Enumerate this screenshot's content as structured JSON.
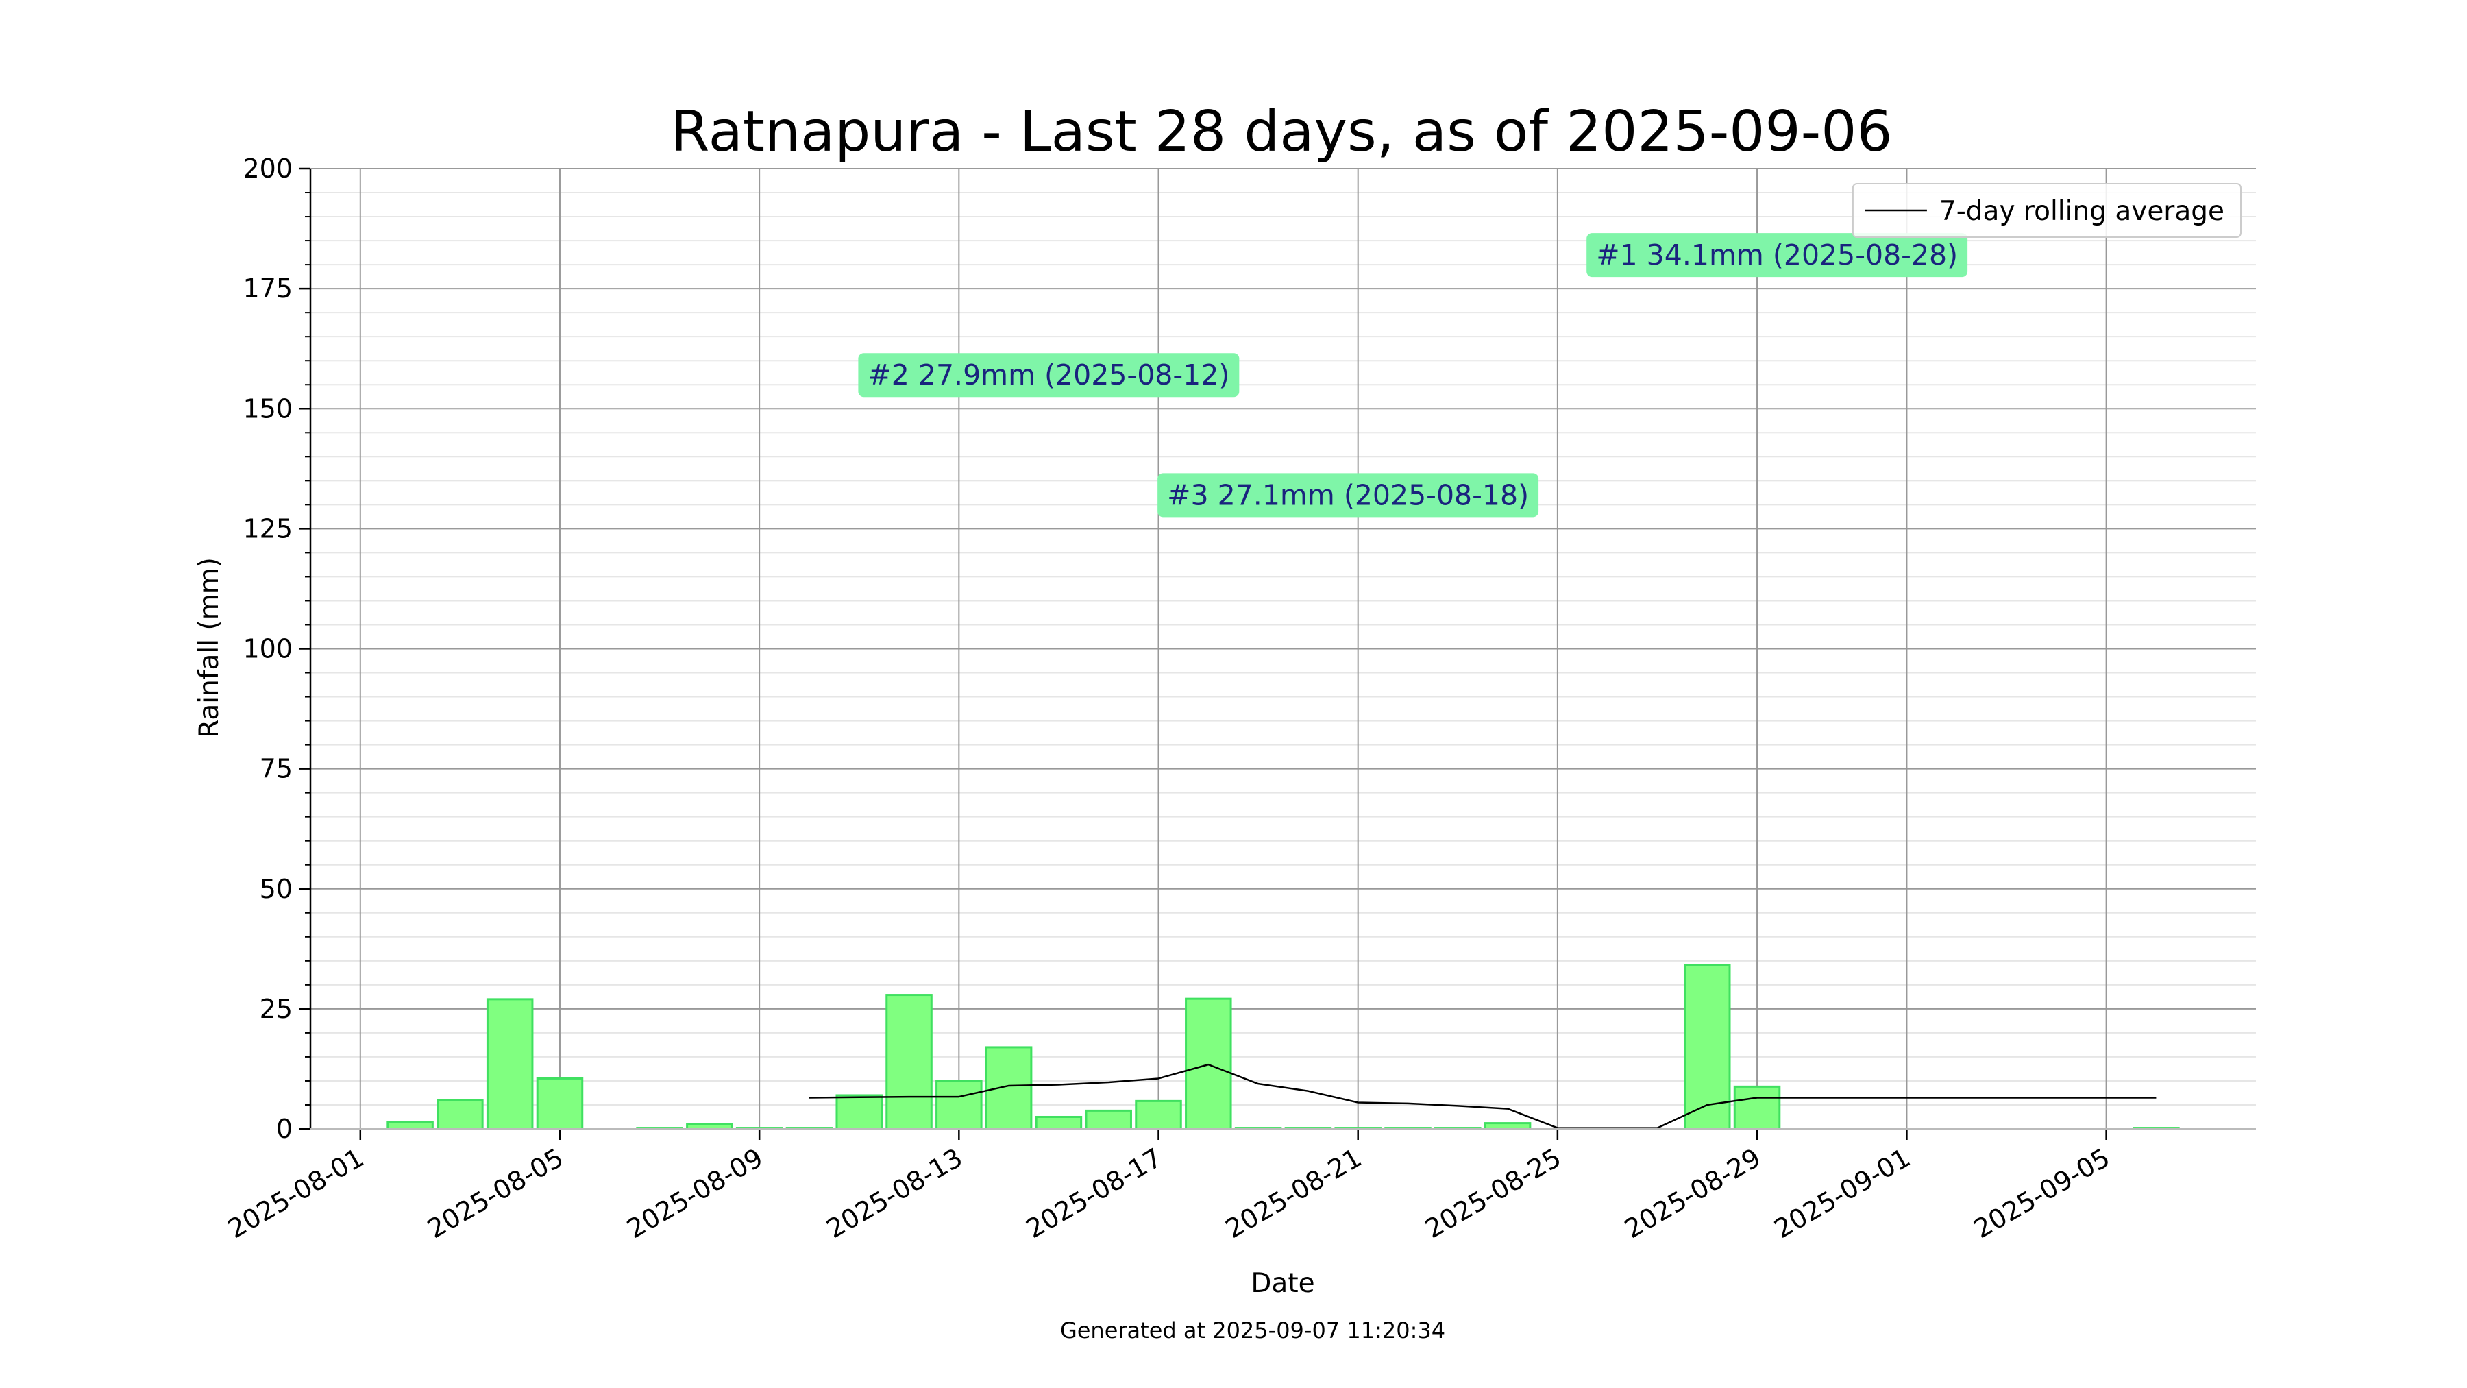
{
  "chart_data": {
    "type": "bar",
    "title": "Ratnapura - Last 28 days, as of 2025-09-06",
    "xlabel": "Date",
    "ylabel": "Rainfall (mm)",
    "footer": "Generated at 2025-09-07 11:20:34",
    "ylim": [
      0,
      200
    ],
    "y_major_ticks": [
      0,
      25,
      50,
      75,
      100,
      125,
      150,
      175,
      200
    ],
    "y_minor_step": 5,
    "xlim": [
      "2025-07-31",
      "2025-09-08"
    ],
    "x_ticks": [
      "2025-08-01",
      "2025-08-05",
      "2025-08-09",
      "2025-08-13",
      "2025-08-17",
      "2025-08-21",
      "2025-08-25",
      "2025-08-29",
      "2025-09-01",
      "2025-09-05"
    ],
    "grid": true,
    "legend_position": "top-right",
    "colors": {
      "bar_fill": "#80ff80",
      "bar_edge": "#40e060",
      "line": "#000000",
      "annotation_box": "#7ff5a8",
      "annotation_text": "#1a237e",
      "grid_major": "#999999",
      "grid_minor": "#e6e6e6"
    },
    "bars": {
      "dates": [
        "2025-08-02",
        "2025-08-03",
        "2025-08-04",
        "2025-08-05",
        "2025-08-07",
        "2025-08-08",
        "2025-08-09",
        "2025-08-10",
        "2025-08-11",
        "2025-08-12",
        "2025-08-13",
        "2025-08-14",
        "2025-08-15",
        "2025-08-16",
        "2025-08-17",
        "2025-08-18",
        "2025-08-19",
        "2025-08-20",
        "2025-08-21",
        "2025-08-22",
        "2025-08-23",
        "2025-08-24",
        "2025-08-28",
        "2025-08-29",
        "2025-09-06"
      ],
      "values": [
        1.5,
        6.0,
        27.0,
        10.5,
        0.2,
        1.0,
        0.2,
        0.2,
        7.0,
        27.9,
        10.0,
        17.0,
        2.5,
        3.8,
        5.8,
        27.1,
        0.2,
        0.2,
        0.2,
        0.2,
        0.2,
        1.2,
        34.1,
        8.8,
        0.2
      ]
    },
    "series": [
      {
        "name": "7-day rolling average",
        "type": "line",
        "dates": [
          "2025-08-10",
          "2025-08-11",
          "2025-08-12",
          "2025-08-13",
          "2025-08-14",
          "2025-08-15",
          "2025-08-16",
          "2025-08-17",
          "2025-08-18",
          "2025-08-19",
          "2025-08-20",
          "2025-08-21",
          "2025-08-22",
          "2025-08-23",
          "2025-08-24",
          "2025-08-25",
          "2025-08-26",
          "2025-08-27",
          "2025-08-28",
          "2025-08-29",
          "2025-08-30",
          "2025-08-31",
          "2025-09-01",
          "2025-09-02",
          "2025-09-03",
          "2025-09-04",
          "2025-09-05",
          "2025-09-06"
        ],
        "values": [
          6.5,
          6.6,
          6.7,
          6.7,
          9.0,
          9.2,
          9.7,
          10.5,
          13.4,
          9.4,
          7.9,
          5.5,
          5.3,
          4.8,
          4.2,
          0.2,
          0.2,
          0.2,
          5.0,
          6.5,
          6.5,
          6.5,
          6.5,
          6.5,
          6.5,
          6.5,
          6.5,
          6.5
        ]
      }
    ],
    "annotations": [
      {
        "text": "#1 34.1mm (2025-08-28)",
        "x": "2025-08-29.4",
        "y": 182
      },
      {
        "text": "#2 27.9mm (2025-08-12)",
        "x": "2025-08-14.8",
        "y": 157
      },
      {
        "text": "#3 27.1mm (2025-08-18)",
        "x": "2025-08-20.8",
        "y": 132
      }
    ]
  }
}
